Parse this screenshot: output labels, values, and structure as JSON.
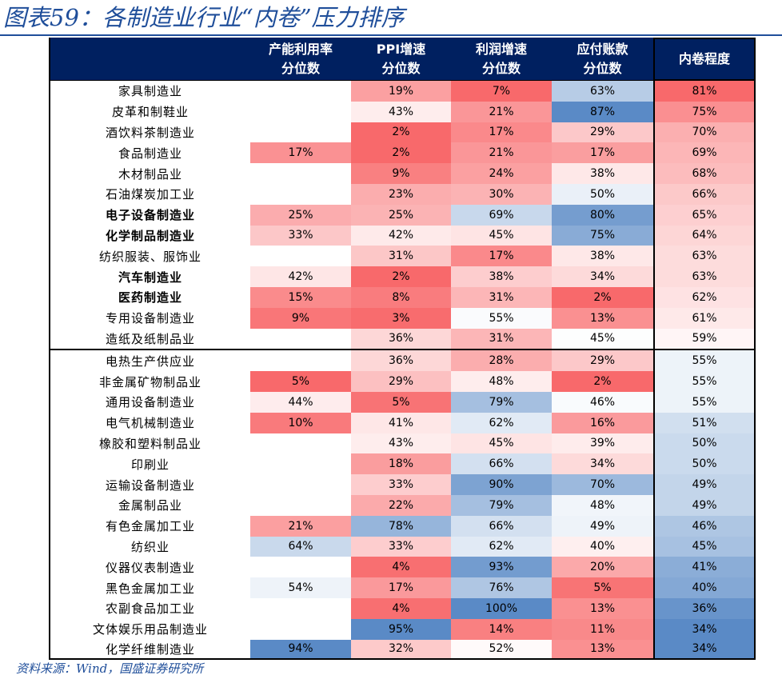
{
  "title": "图表59：各制造业行业“内卷”压力排序",
  "source": "资料来源：Wind，国盛证券研究所",
  "headers": [
    {
      "line1": "",
      "line2": ""
    },
    {
      "line1": "产能利用率",
      "line2": "分位数"
    },
    {
      "line1": "PPI增速",
      "line2": "分位数"
    },
    {
      "line1": "利润增速",
      "line2": "分位数"
    },
    {
      "line1": "应付账款",
      "line2": "分位数"
    },
    {
      "line1": "内卷程度",
      "line2": ""
    }
  ],
  "rows": [
    {
      "name": "家具制造业",
      "bold": false,
      "cap": "",
      "ppi": "19%",
      "profit": "7%",
      "payable": "63%",
      "score": "81%"
    },
    {
      "name": "皮革和制鞋业",
      "bold": false,
      "cap": "",
      "ppi": "43%",
      "profit": "21%",
      "payable": "87%",
      "score": "75%"
    },
    {
      "name": "酒饮料茶制造业",
      "bold": false,
      "cap": "",
      "ppi": "2%",
      "profit": "17%",
      "payable": "29%",
      "score": "70%"
    },
    {
      "name": "食品制造业",
      "bold": false,
      "cap": "17%",
      "ppi": "2%",
      "profit": "21%",
      "payable": "17%",
      "score": "69%"
    },
    {
      "name": "木材制品业",
      "bold": false,
      "cap": "",
      "ppi": "9%",
      "profit": "24%",
      "payable": "38%",
      "score": "68%"
    },
    {
      "name": "石油煤炭加工业",
      "bold": false,
      "cap": "",
      "ppi": "23%",
      "profit": "30%",
      "payable": "50%",
      "score": "66%"
    },
    {
      "name": "电子设备制造业",
      "bold": true,
      "cap": "25%",
      "ppi": "25%",
      "profit": "69%",
      "payable": "80%",
      "score": "65%"
    },
    {
      "name": "化学制品制造业",
      "bold": true,
      "cap": "33%",
      "ppi": "42%",
      "profit": "45%",
      "payable": "75%",
      "score": "64%"
    },
    {
      "name": "纺织服装、服饰业",
      "bold": false,
      "cap": "",
      "ppi": "31%",
      "profit": "17%",
      "payable": "38%",
      "score": "63%"
    },
    {
      "name": "汽车制造业",
      "bold": true,
      "cap": "42%",
      "ppi": "2%",
      "profit": "38%",
      "payable": "34%",
      "score": "63%"
    },
    {
      "name": "医药制造业",
      "bold": true,
      "cap": "15%",
      "ppi": "8%",
      "profit": "31%",
      "payable": "2%",
      "score": "62%"
    },
    {
      "name": "专用设备制造业",
      "bold": false,
      "cap": "9%",
      "ppi": "3%",
      "profit": "55%",
      "payable": "13%",
      "score": "61%"
    },
    {
      "name": "造纸及纸制品业",
      "bold": false,
      "cap": "",
      "ppi": "36%",
      "profit": "31%",
      "payable": "45%",
      "score": "59%"
    },
    {
      "name": "电热生产供应业",
      "bold": false,
      "cap": "",
      "ppi": "36%",
      "profit": "28%",
      "payable": "29%",
      "score": "55%"
    },
    {
      "name": "非金属矿物制品业",
      "bold": false,
      "cap": "5%",
      "ppi": "29%",
      "profit": "48%",
      "payable": "2%",
      "score": "55%"
    },
    {
      "name": "通用设备制造业",
      "bold": false,
      "cap": "44%",
      "ppi": "5%",
      "profit": "79%",
      "payable": "46%",
      "score": "55%"
    },
    {
      "name": "电气机械制造业",
      "bold": false,
      "cap": "10%",
      "ppi": "41%",
      "profit": "62%",
      "payable": "16%",
      "score": "51%"
    },
    {
      "name": "橡胶和塑料制品业",
      "bold": false,
      "cap": "",
      "ppi": "43%",
      "profit": "45%",
      "payable": "39%",
      "score": "50%"
    },
    {
      "name": "印刷业",
      "bold": false,
      "cap": "",
      "ppi": "18%",
      "profit": "66%",
      "payable": "34%",
      "score": "50%"
    },
    {
      "name": "运输设备制造业",
      "bold": false,
      "cap": "",
      "ppi": "33%",
      "profit": "90%",
      "payable": "70%",
      "score": "49%"
    },
    {
      "name": "金属制品业",
      "bold": false,
      "cap": "",
      "ppi": "22%",
      "profit": "79%",
      "payable": "48%",
      "score": "49%"
    },
    {
      "name": "有色金属加工业",
      "bold": false,
      "cap": "21%",
      "ppi": "78%",
      "profit": "66%",
      "payable": "49%",
      "score": "46%"
    },
    {
      "name": "纺织业",
      "bold": false,
      "cap": "64%",
      "ppi": "33%",
      "profit": "62%",
      "payable": "40%",
      "score": "45%"
    },
    {
      "name": "仪器仪表制造业",
      "bold": false,
      "cap": "",
      "ppi": "4%",
      "profit": "93%",
      "payable": "20%",
      "score": "41%"
    },
    {
      "name": "黑色金属加工业",
      "bold": false,
      "cap": "54%",
      "ppi": "17%",
      "profit": "76%",
      "payable": "5%",
      "score": "40%"
    },
    {
      "name": "农副食品加工业",
      "bold": false,
      "cap": "",
      "ppi": "4%",
      "profit": "100%",
      "payable": "13%",
      "score": "36%"
    },
    {
      "name": "文体娱乐用品制造业",
      "bold": false,
      "cap": "",
      "ppi": "95%",
      "profit": "14%",
      "payable": "11%",
      "score": "34%"
    },
    {
      "name": "化学纤维制造业",
      "bold": false,
      "cap": "94%",
      "ppi": "32%",
      "profit": "52%",
      "payable": "13%",
      "score": "34%"
    }
  ],
  "colors": {
    "header_bg": "#002060",
    "title_blue": "#1f4e9a",
    "red_strong": "#f8696b",
    "blue_strong": "#5a8ac6"
  }
}
